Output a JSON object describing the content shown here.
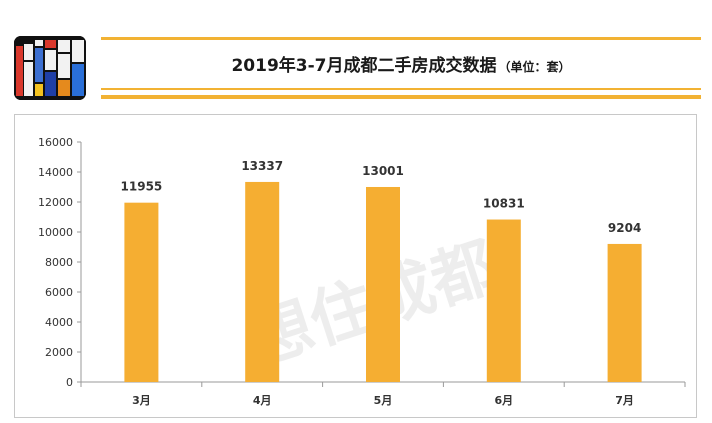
{
  "header": {
    "title": "2019年3-7月成都二手房成交数据",
    "unit": "（单位：套）",
    "logo_text": "想住成都"
  },
  "watermark": "想住成都",
  "colors": {
    "bar": "#f5ae32",
    "rule": "#f2b233",
    "axis": "#9a9a9a",
    "text": "#333333"
  },
  "chart_data": {
    "type": "bar",
    "title": "2019年3-7月成都二手房成交数据",
    "categories": [
      "3月",
      "4月",
      "5月",
      "6月",
      "7月"
    ],
    "values": [
      11955,
      13337,
      13001,
      10831,
      9204
    ],
    "data_labels": [
      "11955",
      "13337",
      "13001",
      "10831",
      "9204"
    ],
    "y_ticks": [
      0,
      2000,
      4000,
      6000,
      8000,
      10000,
      12000,
      14000,
      16000
    ],
    "ylim": [
      0,
      16000
    ],
    "xlabel": "",
    "ylabel": "",
    "grid": false,
    "legend": "none"
  }
}
